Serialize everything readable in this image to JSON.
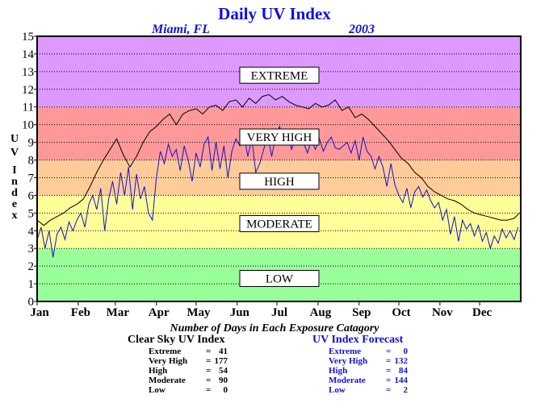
{
  "title": "Daily UV Index",
  "subtitle_location": "Miami, FL",
  "subtitle_year": "2003",
  "colors": {
    "title": "#1010e0",
    "forecast_line": "#1010d0",
    "clear_sky_line": "#000000",
    "band_low": "#99ff99",
    "band_moderate": "#ffff99",
    "band_high": "#ffcc99",
    "band_very_high": "#ff9999",
    "band_extreme": "#dd99ff"
  },
  "chart_data": {
    "type": "line",
    "title": "Daily UV Index",
    "ylabel": "UV Index",
    "ylim": [
      0,
      15
    ],
    "yticks": [
      "0",
      "1",
      "2",
      "3",
      "4",
      "5",
      "6",
      "7",
      "8",
      "9",
      "10",
      "11",
      "12",
      "13",
      "14",
      "15"
    ],
    "xlim": [
      0,
      365
    ],
    "x_ticks": [
      {
        "label": "Jan",
        "day": 0
      },
      {
        "label": "Feb",
        "day": 31
      },
      {
        "label": "Mar",
        "day": 59
      },
      {
        "label": "Apr",
        "day": 90
      },
      {
        "label": "May",
        "day": 120
      },
      {
        "label": "Jun",
        "day": 151
      },
      {
        "label": "Jul",
        "day": 181
      },
      {
        "label": "Aug",
        "day": 212
      },
      {
        "label": "Sep",
        "day": 243
      },
      {
        "label": "Oct",
        "day": 273
      },
      {
        "label": "Nov",
        "day": 304
      },
      {
        "label": "Dec",
        "day": 334
      }
    ],
    "grid": "horizontal-dotted",
    "categories": [
      {
        "label": "LOW",
        "from": 0,
        "to": 3,
        "color": "#99ff99"
      },
      {
        "label": "MODERATE",
        "from": 3,
        "to": 6,
        "color": "#ffff99"
      },
      {
        "label": "HIGH",
        "from": 6,
        "to": 8,
        "color": "#ffcc99"
      },
      {
        "label": "VERY HIGH",
        "from": 8,
        "to": 11,
        "color": "#ff9999"
      },
      {
        "label": "EXTREME",
        "from": 11,
        "to": 15,
        "color": "#dd99ff"
      }
    ],
    "category_label_values": [
      1.3,
      4.4,
      6.8,
      9.3,
      12.8
    ],
    "series": [
      {
        "color": "#000000",
        "x": [
          0,
          5,
          10,
          15,
          20,
          25,
          30,
          35,
          40,
          45,
          50,
          55,
          60,
          65,
          70,
          75,
          80,
          85,
          90,
          95,
          100,
          105,
          110,
          115,
          120,
          125,
          130,
          135,
          140,
          145,
          150,
          155,
          160,
          165,
          170,
          175,
          180,
          185,
          190,
          195,
          200,
          205,
          210,
          215,
          220,
          225,
          230,
          235,
          240,
          245,
          250,
          255,
          260,
          265,
          270,
          275,
          280,
          285,
          290,
          295,
          300,
          305,
          310,
          315,
          320,
          325,
          330,
          335,
          340,
          345,
          350,
          355,
          360,
          364
        ],
        "values": [
          4.6,
          4.3,
          4.6,
          4.8,
          5.0,
          5.3,
          5.5,
          5.8,
          6.5,
          7.3,
          8.0,
          8.6,
          9.2,
          8.3,
          7.6,
          8.2,
          9.0,
          9.6,
          9.9,
          10.3,
          10.6,
          10.0,
          10.6,
          10.8,
          10.9,
          10.6,
          11.0,
          11.1,
          10.8,
          11.3,
          11.4,
          11.0,
          11.5,
          11.2,
          11.6,
          11.7,
          11.4,
          11.6,
          11.3,
          11.1,
          11.0,
          10.9,
          11.2,
          11.0,
          11.1,
          11.4,
          10.8,
          11.0,
          10.4,
          10.6,
          10.3,
          9.9,
          9.5,
          9.1,
          8.6,
          8.1,
          7.8,
          7.3,
          7.0,
          6.5,
          6.2,
          6.0,
          5.8,
          5.7,
          5.5,
          5.2,
          5.0,
          4.9,
          4.8,
          4.7,
          4.6,
          4.6,
          4.7,
          5.0
        ]
      },
      {
        "color": "#1010d0",
        "x": [
          0,
          3,
          6,
          9,
          12,
          15,
          18,
          21,
          24,
          27,
          30,
          33,
          36,
          39,
          42,
          45,
          48,
          51,
          54,
          57,
          60,
          63,
          66,
          69,
          72,
          75,
          78,
          81,
          84,
          87,
          90,
          93,
          96,
          99,
          102,
          105,
          108,
          111,
          114,
          117,
          120,
          123,
          126,
          129,
          132,
          135,
          138,
          141,
          144,
          147,
          150,
          153,
          156,
          159,
          162,
          165,
          168,
          171,
          174,
          177,
          180,
          183,
          186,
          189,
          192,
          195,
          198,
          201,
          204,
          207,
          210,
          213,
          216,
          219,
          222,
          225,
          228,
          231,
          234,
          237,
          240,
          243,
          246,
          249,
          252,
          255,
          258,
          261,
          264,
          267,
          270,
          273,
          276,
          279,
          282,
          285,
          288,
          291,
          294,
          297,
          300,
          303,
          306,
          309,
          312,
          315,
          318,
          321,
          324,
          327,
          330,
          333,
          336,
          339,
          342,
          345,
          348,
          351,
          354,
          357,
          360,
          363
        ],
        "values": [
          3.5,
          4.2,
          3.0,
          4.0,
          2.5,
          3.8,
          4.2,
          3.5,
          4.5,
          4.0,
          4.6,
          5.0,
          4.2,
          5.5,
          6.0,
          5.2,
          6.4,
          4.0,
          5.8,
          6.8,
          5.5,
          7.3,
          6.0,
          7.6,
          5.2,
          7.2,
          5.8,
          6.5,
          5.0,
          4.6,
          7.0,
          8.5,
          7.8,
          8.9,
          8.2,
          8.6,
          7.4,
          8.8,
          8.0,
          6.8,
          8.4,
          7.6,
          8.9,
          9.3,
          7.4,
          9.0,
          7.5,
          8.8,
          7.0,
          8.5,
          9.2,
          8.8,
          9.5,
          8.2,
          9.2,
          7.3,
          7.8,
          8.6,
          9.4,
          8.2,
          9.3,
          9.9,
          9.0,
          9.6,
          8.6,
          9.2,
          8.9,
          9.0,
          8.4,
          9.1,
          8.6,
          9.2,
          8.5,
          9.0,
          9.3,
          8.7,
          8.6,
          8.8,
          9.0,
          8.4,
          9.1,
          8.0,
          9.3,
          8.5,
          8.2,
          7.5,
          8.2,
          7.6,
          6.5,
          7.8,
          6.6,
          6.0,
          5.6,
          6.4,
          5.3,
          6.2,
          6.5,
          5.9,
          6.3,
          5.7,
          5.3,
          5.6,
          4.6,
          5.2,
          3.8,
          4.8,
          3.4,
          4.6,
          4.1,
          4.4,
          3.7,
          4.3,
          3.4,
          3.9,
          3.0,
          3.7,
          3.3,
          4.1,
          3.6,
          4.0,
          3.5,
          4.2
        ]
      }
    ]
  },
  "stats": {
    "heading": "Number of Days in Each Exposure Catagory",
    "clear_sky": {
      "title": "Clear Sky UV Index",
      "rows": [
        {
          "label": "Extreme",
          "value": "41"
        },
        {
          "label": "Very High",
          "value": "177"
        },
        {
          "label": "High",
          "value": "54"
        },
        {
          "label": "Moderate",
          "value": "90"
        },
        {
          "label": "Low",
          "value": "0"
        }
      ]
    },
    "forecast": {
      "title": "UV Index Forecast",
      "rows": [
        {
          "label": "Extreme",
          "value": "0"
        },
        {
          "label": "Very High",
          "value": "132"
        },
        {
          "label": "High",
          "value": "84"
        },
        {
          "label": "Moderate",
          "value": "144"
        },
        {
          "label": "Low",
          "value": "2"
        }
      ]
    }
  }
}
